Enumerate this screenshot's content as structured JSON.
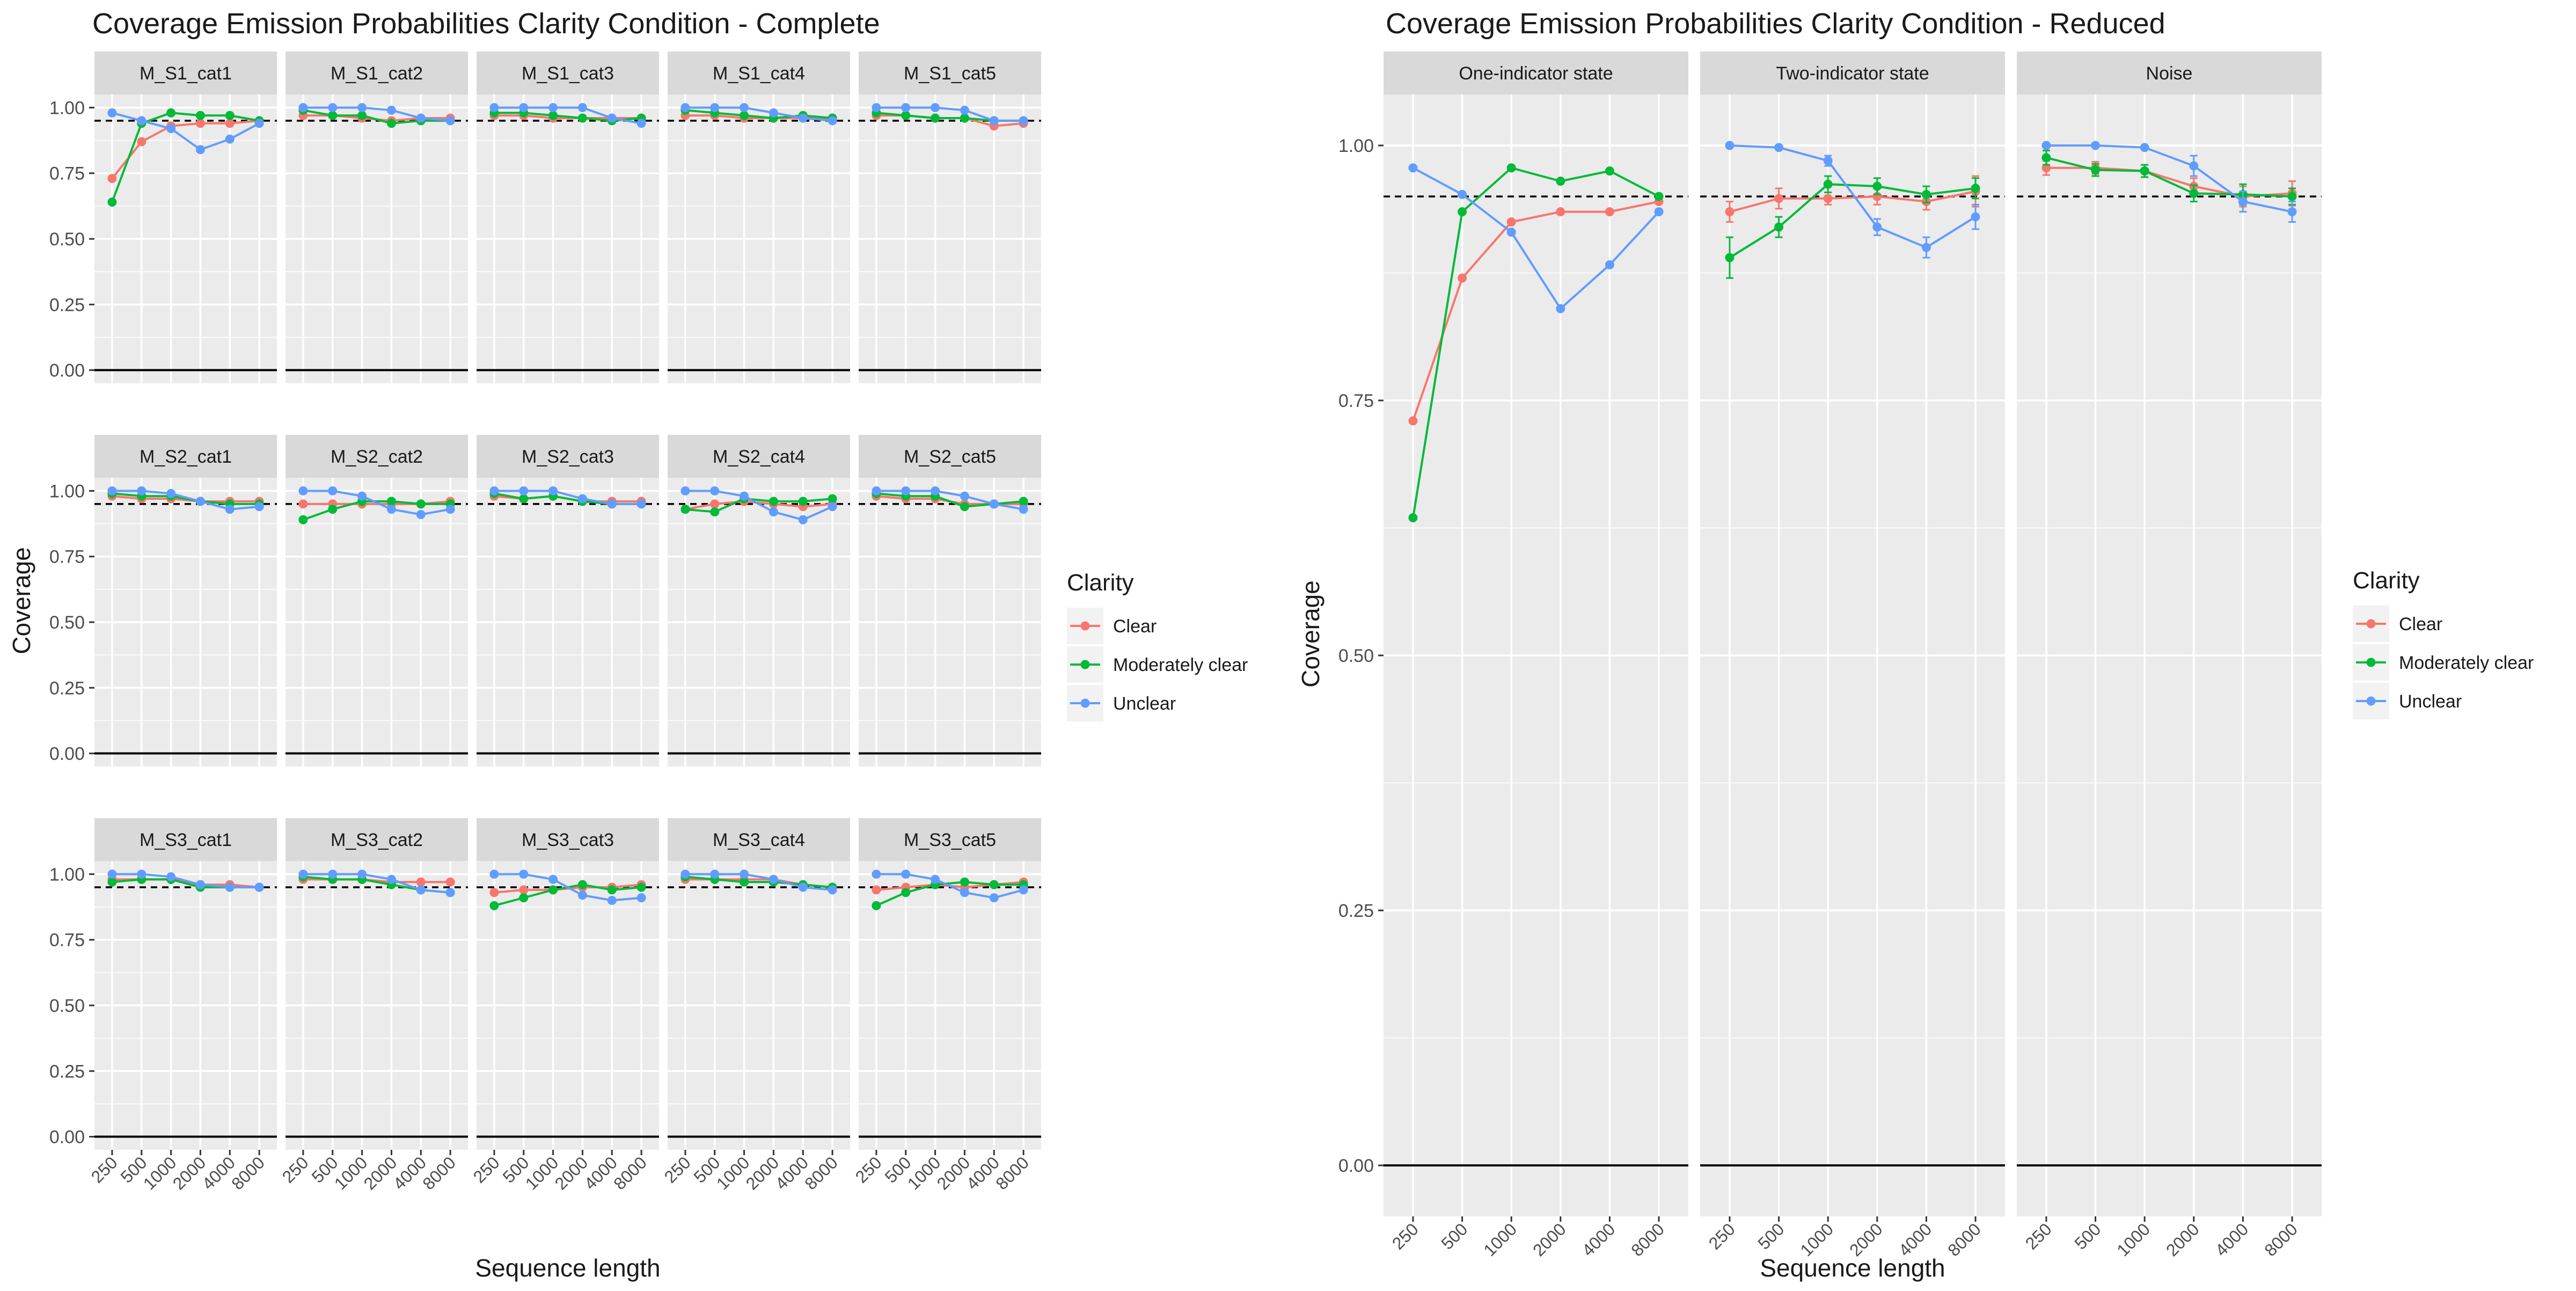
{
  "colors": {
    "Clear": "#F8766D",
    "Moderately clear": "#00BA38",
    "Unclear": "#619CFF"
  },
  "chart_data": [
    {
      "type": "line",
      "title": "Coverage Emission Probabilities Clarity Condition - Complete",
      "xlabel": "Sequence length",
      "ylabel": "Coverage",
      "ylim": [
        0,
        1
      ],
      "yticks": [
        "0.00",
        "0.25",
        "0.50",
        "0.75",
        "1.00"
      ],
      "categories": [
        "250",
        "500",
        "1000",
        "2000",
        "4000",
        "8000"
      ],
      "reference_line": 0.95,
      "legend": {
        "title": "Clarity",
        "position": "right",
        "entries": [
          "Clear",
          "Moderately clear",
          "Unclear"
        ]
      },
      "grid": true,
      "facets": [
        {
          "label": "M_S1_cat1",
          "series": [
            {
              "name": "Clear",
              "values": [
                0.73,
                0.87,
                0.93,
                0.94,
                0.94,
                0.95
              ]
            },
            {
              "name": "Moderately clear",
              "values": [
                0.64,
                0.94,
                0.98,
                0.97,
                0.97,
                0.95
              ]
            },
            {
              "name": "Unclear",
              "values": [
                0.98,
                0.95,
                0.92,
                0.84,
                0.88,
                0.94
              ]
            }
          ]
        },
        {
          "label": "M_S1_cat2",
          "series": [
            {
              "name": "Clear",
              "values": [
                0.97,
                0.97,
                0.96,
                0.95,
                0.96,
                0.96
              ]
            },
            {
              "name": "Moderately clear",
              "values": [
                0.99,
                0.97,
                0.97,
                0.94,
                0.95,
                0.95
              ]
            },
            {
              "name": "Unclear",
              "values": [
                1.0,
                1.0,
                1.0,
                0.99,
                0.96,
                0.95
              ]
            }
          ]
        },
        {
          "label": "M_S1_cat3",
          "series": [
            {
              "name": "Clear",
              "values": [
                0.97,
                0.97,
                0.96,
                0.96,
                0.96,
                0.96
              ]
            },
            {
              "name": "Moderately clear",
              "values": [
                0.98,
                0.98,
                0.97,
                0.96,
                0.95,
                0.96
              ]
            },
            {
              "name": "Unclear",
              "values": [
                1.0,
                1.0,
                1.0,
                1.0,
                0.96,
                0.94
              ]
            }
          ]
        },
        {
          "label": "M_S1_cat4",
          "series": [
            {
              "name": "Clear",
              "values": [
                0.97,
                0.97,
                0.96,
                0.96,
                0.96,
                0.96
              ]
            },
            {
              "name": "Moderately clear",
              "values": [
                0.99,
                0.98,
                0.97,
                0.96,
                0.97,
                0.96
              ]
            },
            {
              "name": "Unclear",
              "values": [
                1.0,
                1.0,
                1.0,
                0.98,
                0.96,
                0.95
              ]
            }
          ]
        },
        {
          "label": "M_S1_cat5",
          "series": [
            {
              "name": "Clear",
              "values": [
                0.97,
                0.97,
                0.96,
                0.96,
                0.93,
                0.94
              ]
            },
            {
              "name": "Moderately clear",
              "values": [
                0.98,
                0.97,
                0.96,
                0.96,
                0.95,
                0.95
              ]
            },
            {
              "name": "Unclear",
              "values": [
                1.0,
                1.0,
                1.0,
                0.99,
                0.95,
                0.95
              ]
            }
          ]
        },
        {
          "label": "M_S2_cat1",
          "series": [
            {
              "name": "Clear",
              "values": [
                0.98,
                0.97,
                0.97,
                0.96,
                0.96,
                0.96
              ]
            },
            {
              "name": "Moderately clear",
              "values": [
                0.99,
                0.98,
                0.98,
                0.96,
                0.95,
                0.95
              ]
            },
            {
              "name": "Unclear",
              "values": [
                1.0,
                1.0,
                0.99,
                0.96,
                0.93,
                0.94
              ]
            }
          ]
        },
        {
          "label": "M_S2_cat2",
          "series": [
            {
              "name": "Clear",
              "values": [
                0.95,
                0.95,
                0.95,
                0.95,
                0.95,
                0.96
              ]
            },
            {
              "name": "Moderately clear",
              "values": [
                0.89,
                0.93,
                0.96,
                0.96,
                0.95,
                0.95
              ]
            },
            {
              "name": "Unclear",
              "values": [
                1.0,
                1.0,
                0.98,
                0.93,
                0.91,
                0.93
              ]
            }
          ]
        },
        {
          "label": "M_S2_cat3",
          "series": [
            {
              "name": "Clear",
              "values": [
                0.98,
                0.97,
                0.98,
                0.96,
                0.96,
                0.96
              ]
            },
            {
              "name": "Moderately clear",
              "values": [
                0.99,
                0.97,
                0.98,
                0.96,
                0.95,
                0.95
              ]
            },
            {
              "name": "Unclear",
              "values": [
                1.0,
                1.0,
                1.0,
                0.97,
                0.95,
                0.95
              ]
            }
          ]
        },
        {
          "label": "M_S2_cat4",
          "series": [
            {
              "name": "Clear",
              "values": [
                0.93,
                0.95,
                0.96,
                0.95,
                0.94,
                0.95
              ]
            },
            {
              "name": "Moderately clear",
              "values": [
                0.93,
                0.92,
                0.97,
                0.96,
                0.96,
                0.97
              ]
            },
            {
              "name": "Unclear",
              "values": [
                1.0,
                1.0,
                0.98,
                0.92,
                0.89,
                0.94
              ]
            }
          ]
        },
        {
          "label": "M_S2_cat5",
          "series": [
            {
              "name": "Clear",
              "values": [
                0.98,
                0.97,
                0.97,
                0.95,
                0.95,
                0.95
              ]
            },
            {
              "name": "Moderately clear",
              "values": [
                0.99,
                0.98,
                0.98,
                0.94,
                0.95,
                0.96
              ]
            },
            {
              "name": "Unclear",
              "values": [
                1.0,
                1.0,
                1.0,
                0.98,
                0.95,
                0.93
              ]
            }
          ]
        },
        {
          "label": "M_S3_cat1",
          "series": [
            {
              "name": "Clear",
              "values": [
                0.98,
                0.98,
                0.98,
                0.96,
                0.96,
                0.95
              ]
            },
            {
              "name": "Moderately clear",
              "values": [
                0.97,
                0.98,
                0.98,
                0.95,
                0.95,
                0.95
              ]
            },
            {
              "name": "Unclear",
              "values": [
                1.0,
                1.0,
                0.99,
                0.96,
                0.95,
                0.95
              ]
            }
          ]
        },
        {
          "label": "M_S3_cat2",
          "series": [
            {
              "name": "Clear",
              "values": [
                0.98,
                0.98,
                0.98,
                0.97,
                0.97,
                0.97
              ]
            },
            {
              "name": "Moderately clear",
              "values": [
                0.99,
                0.98,
                0.98,
                0.96,
                0.94,
                0.93
              ]
            },
            {
              "name": "Unclear",
              "values": [
                1.0,
                1.0,
                1.0,
                0.98,
                0.94,
                0.93
              ]
            }
          ]
        },
        {
          "label": "M_S3_cat3",
          "series": [
            {
              "name": "Clear",
              "values": [
                0.93,
                0.94,
                0.94,
                0.95,
                0.95,
                0.96
              ]
            },
            {
              "name": "Moderately clear",
              "values": [
                0.88,
                0.91,
                0.94,
                0.96,
                0.94,
                0.95
              ]
            },
            {
              "name": "Unclear",
              "values": [
                1.0,
                1.0,
                0.98,
                0.92,
                0.9,
                0.91
              ]
            }
          ]
        },
        {
          "label": "M_S3_cat4",
          "series": [
            {
              "name": "Clear",
              "values": [
                0.98,
                0.98,
                0.98,
                0.98,
                0.96,
                0.95
              ]
            },
            {
              "name": "Moderately clear",
              "values": [
                0.99,
                0.98,
                0.97,
                0.97,
                0.96,
                0.95
              ]
            },
            {
              "name": "Unclear",
              "values": [
                1.0,
                1.0,
                1.0,
                0.98,
                0.95,
                0.94
              ]
            }
          ]
        },
        {
          "label": "M_S3_cat5",
          "series": [
            {
              "name": "Clear",
              "values": [
                0.94,
                0.95,
                0.96,
                0.95,
                0.96,
                0.97
              ]
            },
            {
              "name": "Moderately clear",
              "values": [
                0.88,
                0.93,
                0.96,
                0.97,
                0.96,
                0.96
              ]
            },
            {
              "name": "Unclear",
              "values": [
                1.0,
                1.0,
                0.98,
                0.93,
                0.91,
                0.94
              ]
            }
          ]
        }
      ]
    },
    {
      "type": "line",
      "title": "Coverage Emission Probabilities Clarity Condition - Reduced",
      "xlabel": "Sequence length",
      "ylabel": "Coverage",
      "ylim": [
        0,
        1
      ],
      "yticks": [
        "0.00",
        "0.25",
        "0.50",
        "0.75",
        "1.00"
      ],
      "categories": [
        "250",
        "500",
        "1000",
        "2000",
        "4000",
        "8000"
      ],
      "reference_line": 0.95,
      "legend": {
        "title": "Clarity",
        "position": "right",
        "entries": [
          "Clear",
          "Moderately clear",
          "Unclear"
        ]
      },
      "grid": true,
      "error_bars": true,
      "facets": [
        {
          "label": "One-indicator state",
          "series": [
            {
              "name": "Clear",
              "values": [
                0.73,
                0.87,
                0.925,
                0.935,
                0.935,
                0.945
              ]
            },
            {
              "name": "Moderately clear",
              "values": [
                0.635,
                0.935,
                0.978,
                0.965,
                0.975,
                0.95
              ]
            },
            {
              "name": "Unclear",
              "values": [
                0.978,
                0.952,
                0.915,
                0.84,
                0.883,
                0.935
              ]
            }
          ]
        },
        {
          "label": "Two-indicator state",
          "series": [
            {
              "name": "Clear",
              "values": [
                0.935,
                0.948,
                0.948,
                0.95,
                0.945,
                0.955
              ],
              "errors": [
                0.01,
                0.01,
                0.006,
                0.008,
                0.008,
                0.015
              ]
            },
            {
              "name": "Moderately clear",
              "values": [
                0.89,
                0.92,
                0.962,
                0.96,
                0.952,
                0.958
              ],
              "errors": [
                0.02,
                0.01,
                0.008,
                0.008,
                0.008,
                0.01
              ]
            },
            {
              "name": "Unclear",
              "values": [
                1.0,
                0.998,
                0.985,
                0.92,
                0.9,
                0.93
              ],
              "errors": [
                0.0,
                0.0,
                0.005,
                0.008,
                0.01,
                0.012
              ]
            }
          ]
        },
        {
          "label": "Noise",
          "series": [
            {
              "name": "Clear",
              "values": [
                0.978,
                0.978,
                0.975,
                0.96,
                0.95,
                0.953
              ],
              "errors": [
                0.007,
                0.006,
                0.006,
                0.008,
                0.01,
                0.012
              ]
            },
            {
              "name": "Moderately clear",
              "values": [
                0.988,
                0.976,
                0.975,
                0.953,
                0.952,
                0.95
              ],
              "errors": [
                0.007,
                0.006,
                0.006,
                0.008,
                0.01,
                0.008
              ]
            },
            {
              "name": "Unclear",
              "values": [
                1.0,
                1.0,
                0.998,
                0.98,
                0.945,
                0.935
              ],
              "errors": [
                0.0,
                0.0,
                0.002,
                0.01,
                0.01,
                0.01
              ]
            }
          ]
        }
      ]
    }
  ]
}
